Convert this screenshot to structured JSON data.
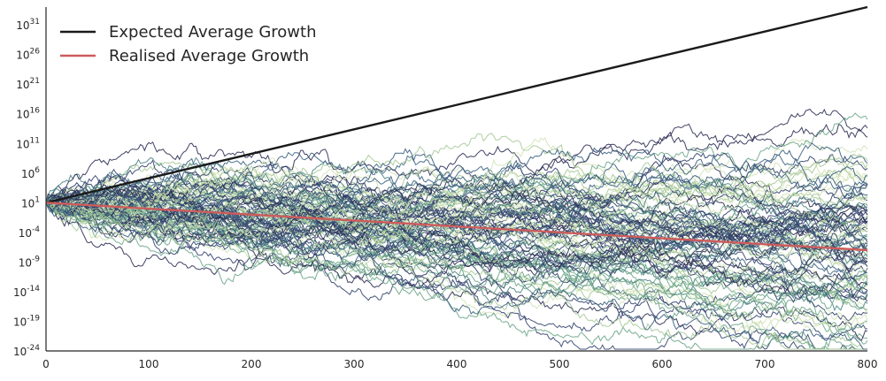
{
  "chart_data": {
    "type": "line",
    "title": "",
    "xlabel": "",
    "ylabel": "",
    "xlim": [
      0,
      800
    ],
    "ylim_log10": [
      -24,
      34
    ],
    "y_scale": "log",
    "grid": false,
    "legend_placement": "top-left",
    "x_ticks": [
      0,
      100,
      200,
      300,
      400,
      500,
      600,
      700,
      800
    ],
    "y_ticks": [
      {
        "base": "10",
        "exp": "-24",
        "log10": -24
      },
      {
        "base": "10",
        "exp": "-19",
        "log10": -19
      },
      {
        "base": "10",
        "exp": "-14",
        "log10": -14
      },
      {
        "base": "10",
        "exp": "-9",
        "log10": -9
      },
      {
        "base": "10",
        "exp": "-4",
        "log10": -4
      },
      {
        "base": "10",
        "exp": "1",
        "log10": 1
      },
      {
        "base": "10",
        "exp": "6",
        "log10": 6
      },
      {
        "base": "10",
        "exp": "11",
        "log10": 11
      },
      {
        "base": "10",
        "exp": "16",
        "log10": 16
      },
      {
        "base": "10",
        "exp": "21",
        "log10": 21
      },
      {
        "base": "10",
        "exp": "26",
        "log10": 26
      },
      {
        "base": "10",
        "exp": "31",
        "log10": 31
      }
    ],
    "series": [
      {
        "name": "Expected Average Growth",
        "color": "#1a1a1a",
        "x": [
          0,
          800
        ],
        "y_log10": [
          1,
          34
        ]
      },
      {
        "name": "Realised Average Growth",
        "color": "#cd5c5c",
        "x": [
          0,
          800
        ],
        "y_log10": [
          1,
          -7
        ]
      }
    ],
    "simulated_paths": {
      "count": 100,
      "steps": 800,
      "start_log10": 1,
      "colormap": [
        "#2c2d54",
        "#33426e",
        "#3a5f80",
        "#4f8485",
        "#6ea68b",
        "#a6c997",
        "#d3e3b8"
      ]
    }
  }
}
